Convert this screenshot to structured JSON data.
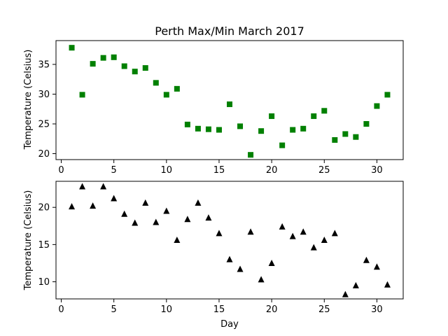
{
  "chart_data": [
    {
      "type": "scatter",
      "title": "Perth Max/Min March 2017",
      "xlabel": "",
      "ylabel": "Temperature (Celsius)",
      "xlim": [
        -0.5,
        32.5
      ],
      "ylim": [
        19.0,
        39.0
      ],
      "xticks": [
        0,
        5,
        10,
        15,
        20,
        25,
        30
      ],
      "yticks": [
        20,
        25,
        30,
        35
      ],
      "grid": false,
      "marker": "square",
      "color": "#008000",
      "series": [
        {
          "x": [
            1,
            2,
            3,
            4,
            5,
            6,
            7,
            8,
            9,
            10,
            11,
            12,
            13,
            14,
            15,
            16,
            17,
            18,
            19,
            20,
            21,
            22,
            23,
            24,
            25,
            26,
            27,
            28,
            29,
            30,
            31
          ],
          "values": [
            37.8,
            29.9,
            35.1,
            36.1,
            36.2,
            34.7,
            33.8,
            34.4,
            31.9,
            29.9,
            30.9,
            24.9,
            24.2,
            24.1,
            24.0,
            28.3,
            24.6,
            19.8,
            23.8,
            26.3,
            21.4,
            24.0,
            24.2,
            26.3,
            27.2,
            22.3,
            23.3,
            22.8,
            25.0,
            28.0,
            29.9
          ]
        }
      ]
    },
    {
      "type": "scatter",
      "title": "",
      "xlabel": "Day",
      "ylabel": "Temperature (Celsius)",
      "xlim": [
        -0.5,
        32.5
      ],
      "ylim": [
        7.7,
        23.5
      ],
      "xticks": [
        0,
        5,
        10,
        15,
        20,
        25,
        30
      ],
      "yticks": [
        10,
        15,
        20
      ],
      "grid": false,
      "marker": "triangle",
      "color": "#000000",
      "series": [
        {
          "x": [
            1,
            2,
            3,
            4,
            5,
            6,
            7,
            8,
            9,
            10,
            11,
            12,
            13,
            14,
            15,
            16,
            17,
            18,
            19,
            20,
            21,
            22,
            23,
            24,
            25,
            26,
            27,
            28,
            29,
            30,
            31
          ],
          "values": [
            20.1,
            22.8,
            20.2,
            22.8,
            21.2,
            19.1,
            17.9,
            20.6,
            18.0,
            19.5,
            15.6,
            18.4,
            20.6,
            18.6,
            16.5,
            13.0,
            11.7,
            16.7,
            10.3,
            12.5,
            17.4,
            16.1,
            16.7,
            14.6,
            15.6,
            16.5,
            8.3,
            9.5,
            12.9,
            12.0,
            9.6
          ]
        }
      ]
    }
  ]
}
